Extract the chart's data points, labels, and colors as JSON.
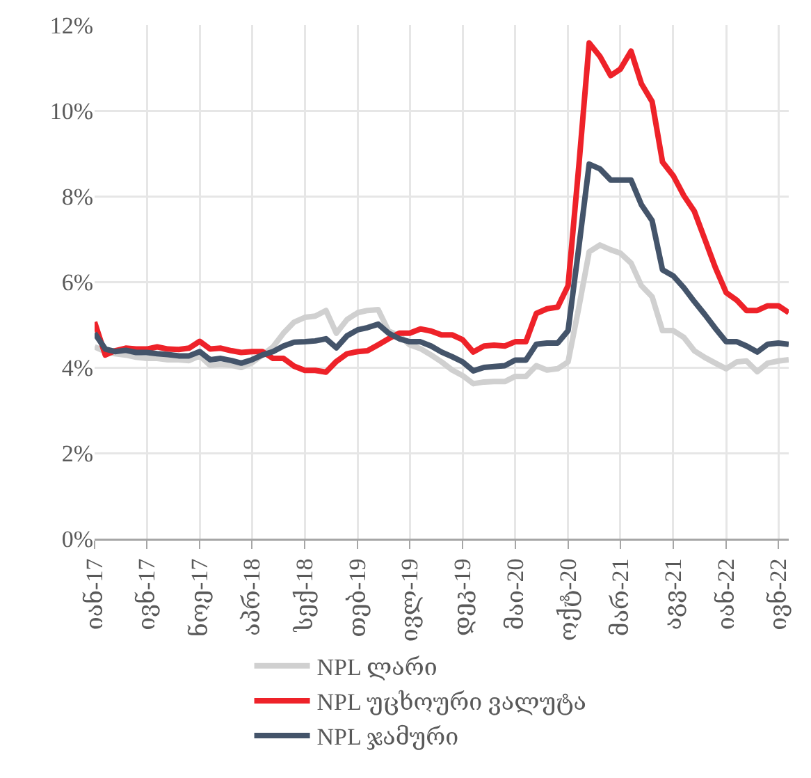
{
  "chart_data": {
    "type": "line",
    "x": [
      "2017-01",
      "2017-02",
      "2017-03",
      "2017-04",
      "2017-05",
      "2017-06",
      "2017-07",
      "2017-08",
      "2017-09",
      "2017-10",
      "2017-11",
      "2017-12",
      "2018-01",
      "2018-02",
      "2018-03",
      "2018-04",
      "2018-05",
      "2018-06",
      "2018-07",
      "2018-08",
      "2018-09",
      "2018-10",
      "2018-11",
      "2018-12",
      "2019-01",
      "2019-02",
      "2019-03",
      "2019-04",
      "2019-05",
      "2019-06",
      "2019-07",
      "2019-08",
      "2019-09",
      "2019-10",
      "2019-11",
      "2019-12",
      "2020-01",
      "2020-02",
      "2020-03",
      "2020-04",
      "2020-05",
      "2020-06",
      "2020-07",
      "2020-08",
      "2020-09",
      "2020-10",
      "2020-11",
      "2020-12",
      "2021-01",
      "2021-02",
      "2021-03",
      "2021-04",
      "2021-05",
      "2021-06",
      "2021-07",
      "2021-08",
      "2021-09",
      "2021-10",
      "2021-11",
      "2021-12",
      "2022-01",
      "2022-02",
      "2022-03",
      "2022-04",
      "2022-05",
      "2022-06",
      "2022-07"
    ],
    "series": [
      {
        "name": "NPL ლარი",
        "color": "#d0d0d0",
        "values": [
          4.48,
          4.37,
          4.32,
          4.29,
          4.24,
          4.21,
          4.21,
          4.18,
          4.18,
          4.16,
          4.27,
          4.05,
          4.07,
          4.05,
          4.0,
          4.11,
          4.29,
          4.48,
          4.8,
          5.06,
          5.17,
          5.2,
          5.33,
          4.8,
          5.12,
          5.28,
          5.33,
          5.35,
          4.85,
          4.74,
          4.53,
          4.44,
          4.29,
          4.13,
          3.94,
          3.81,
          3.62,
          3.66,
          3.67,
          3.67,
          3.79,
          3.79,
          4.04,
          3.94,
          3.97,
          4.13,
          5.4,
          6.7,
          6.86,
          6.75,
          6.67,
          6.44,
          5.91,
          5.65,
          4.86,
          4.86,
          4.7,
          4.39,
          4.23,
          4.1,
          3.97,
          4.13,
          4.15,
          3.9,
          4.1,
          4.15,
          4.18
        ]
      },
      {
        "name": "NPL უცხოური ვალუტა",
        "color": "#ee2229",
        "values": [
          5.06,
          4.29,
          4.39,
          4.45,
          4.43,
          4.43,
          4.48,
          4.43,
          4.42,
          4.45,
          4.61,
          4.43,
          4.45,
          4.39,
          4.35,
          4.37,
          4.37,
          4.21,
          4.21,
          4.03,
          3.93,
          3.93,
          3.89,
          4.14,
          4.32,
          4.37,
          4.39,
          4.53,
          4.67,
          4.8,
          4.8,
          4.9,
          4.85,
          4.76,
          4.76,
          4.65,
          4.36,
          4.5,
          4.52,
          4.5,
          4.6,
          4.6,
          5.26,
          5.37,
          5.41,
          5.91,
          8.7,
          11.58,
          11.27,
          10.82,
          10.97,
          11.39,
          10.63,
          10.21,
          8.8,
          8.48,
          8.01,
          7.65,
          6.98,
          6.33,
          5.75,
          5.57,
          5.33,
          5.33,
          5.44,
          5.44,
          5.28
        ]
      },
      {
        "name": "NPL ჯამური",
        "color": "#44546a",
        "values": [
          4.8,
          4.43,
          4.37,
          4.4,
          4.35,
          4.35,
          4.32,
          4.3,
          4.27,
          4.27,
          4.37,
          4.18,
          4.21,
          4.16,
          4.1,
          4.18,
          4.29,
          4.37,
          4.5,
          4.59,
          4.6,
          4.62,
          4.67,
          4.46,
          4.74,
          4.88,
          4.93,
          5.01,
          4.8,
          4.67,
          4.6,
          4.6,
          4.5,
          4.36,
          4.25,
          4.13,
          3.92,
          4.0,
          4.02,
          4.04,
          4.17,
          4.17,
          4.54,
          4.57,
          4.57,
          4.86,
          6.8,
          8.75,
          8.64,
          8.38,
          8.38,
          8.38,
          7.8,
          7.43,
          6.28,
          6.14,
          5.86,
          5.54,
          5.23,
          4.91,
          4.6,
          4.6,
          4.5,
          4.36,
          4.54,
          4.57,
          4.54
        ]
      }
    ],
    "xlim": [
      "2017-01",
      "2022-07"
    ],
    "xticks": [
      {
        "value": "2017-01",
        "label": "იან-17"
      },
      {
        "value": "2017-06",
        "label": "ივნ-17"
      },
      {
        "value": "2017-11",
        "label": "ნოე-17"
      },
      {
        "value": "2018-04",
        "label": "აპრ-18"
      },
      {
        "value": "2018-09",
        "label": "სექ-18"
      },
      {
        "value": "2019-02",
        "label": "თებ-19"
      },
      {
        "value": "2019-07",
        "label": "ივლ-19"
      },
      {
        "value": "2019-12",
        "label": "დეკ-19"
      },
      {
        "value": "2020-05",
        "label": "მაი-20"
      },
      {
        "value": "2020-10",
        "label": "ოქტ-20"
      },
      {
        "value": "2021-03",
        "label": "მარ-21"
      },
      {
        "value": "2021-08",
        "label": "აგვ-21"
      },
      {
        "value": "2022-01",
        "label": "იან-22"
      },
      {
        "value": "2022-06",
        "label": "ივნ-22"
      }
    ],
    "ylim": [
      0,
      12
    ],
    "yticks": [
      {
        "value": 0,
        "label": "0%"
      },
      {
        "value": 2,
        "label": "2%"
      },
      {
        "value": 4,
        "label": "4%"
      },
      {
        "value": 6,
        "label": "6%"
      },
      {
        "value": 8,
        "label": "8%"
      },
      {
        "value": 10,
        "label": "10%"
      },
      {
        "value": 12,
        "label": "12%"
      }
    ],
    "grid": true,
    "legend": "bottom",
    "marker": "none",
    "line_style": "solid"
  }
}
